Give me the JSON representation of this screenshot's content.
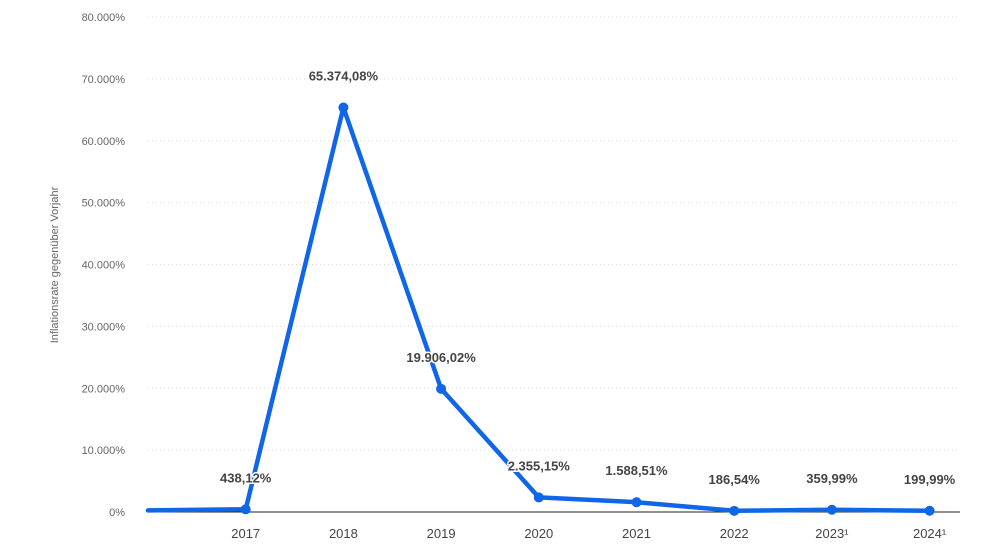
{
  "chart_data": {
    "type": "line",
    "ylabel": "Inflationsrate gegenüber Vorjahr",
    "xlabel": "",
    "y_ticks": [
      "0%",
      "10.000%",
      "20.000%",
      "30.000%",
      "40.000%",
      "50.000%",
      "60.000%",
      "70.000%",
      "80.000%"
    ],
    "ylim": [
      0,
      80000
    ],
    "grid": true,
    "categories": [
      "",
      "2017",
      "2018",
      "2019",
      "2020",
      "2021",
      "2022",
      "2023¹",
      "2024¹"
    ],
    "series": [
      {
        "color": "#0f66e6",
        "values": [
          255,
          438.12,
          65374.08,
          19906.02,
          2355.15,
          1588.51,
          186.54,
          359.99,
          199.99
        ],
        "labels": [
          "",
          "438,12%",
          "65.374,08%",
          "19.906,02%",
          "2.355,15%",
          "1.588,51%",
          "186,54%",
          "359,99%",
          "199,99%"
        ]
      }
    ]
  }
}
